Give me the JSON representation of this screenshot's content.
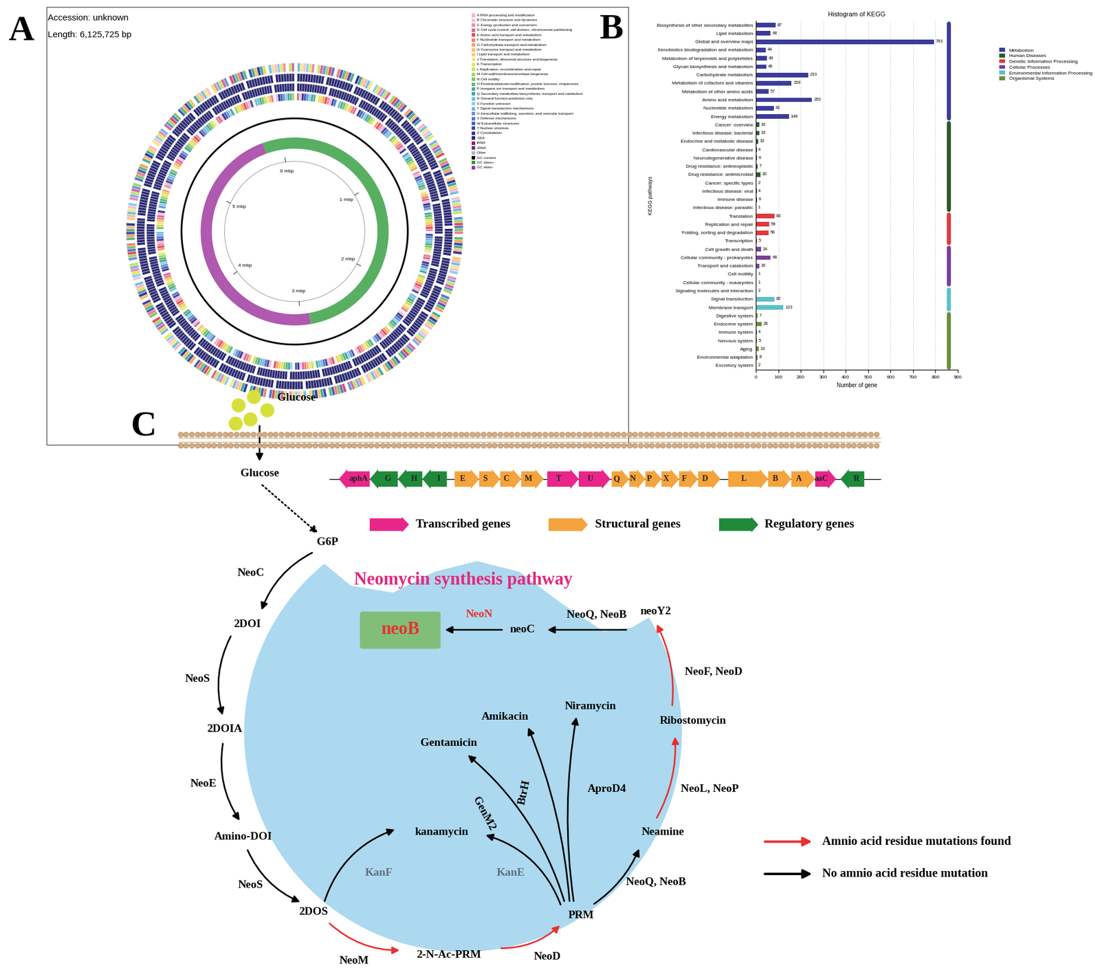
{
  "panel_labels": [
    "A",
    "B",
    "C"
  ],
  "genome_map": {
    "accession": "Accession: unknown",
    "length": "Length: 6,125,725 bp",
    "length_bp": 6125725,
    "scale_labels": [
      {
        "value": 1,
        "label": "1 mbp"
      },
      {
        "value": 2,
        "label": "2 mbp"
      },
      {
        "value": 3,
        "label": "3 mbp"
      },
      {
        "value": 4,
        "label": "4 mbp"
      },
      {
        "value": 5,
        "label": "5 mbp"
      },
      {
        "value": 6,
        "label": "6 mbp"
      }
    ],
    "legend": [
      {
        "label": "A RNA processing and modification",
        "color": "#f7b6c2"
      },
      {
        "label": "B Chromatin structure and dynamics",
        "color": "#f4c2d7"
      },
      {
        "label": "C Energy production and conversion",
        "color": "#e58fb6"
      },
      {
        "label": "D Cell cycle control, cell division, chromosome partitioning",
        "color": "#d76a9e"
      },
      {
        "label": "E Amino acid transport and metabolism",
        "color": "#e84a5f"
      },
      {
        "label": "F Nucleotide transport and metabolism",
        "color": "#f08080"
      },
      {
        "label": "G Carbohydrate transport and metabolism",
        "color": "#f4a460"
      },
      {
        "label": "H Coenzyme transport and metabolism",
        "color": "#f5c16c"
      },
      {
        "label": "I Lipid transport and metabolism",
        "color": "#f2d16b"
      },
      {
        "label": "J Translation, ribosomal structure and biogenesis",
        "color": "#f6e58d"
      },
      {
        "label": "K Transcription",
        "color": "#e5e85c"
      },
      {
        "label": "L Replication, recombination and repair",
        "color": "#c8e06a"
      },
      {
        "label": "M Cell wall/membrane/envelope biogenesis",
        "color": "#a5d46a"
      },
      {
        "label": "N Cell motility",
        "color": "#7cc36b"
      },
      {
        "label": "O Posttranslational modification, protein turnover, chaperones",
        "color": "#5fb878"
      },
      {
        "label": "P Inorganic ion transport and metabolism",
        "color": "#4fae8f"
      },
      {
        "label": "Q Secondary metabolites biosynthesis, transport and catabolism",
        "color": "#45a5a8"
      },
      {
        "label": "R General function prediction only",
        "color": "#6fc3d8"
      },
      {
        "label": "S Function unknown",
        "color": "#8fd0e8"
      },
      {
        "label": "T Signal transduction mechanisms",
        "color": "#7fb3e0"
      },
      {
        "label": "U Intracellular trafficking, secretion, and vesicular transport",
        "color": "#6b95d6"
      },
      {
        "label": "V Defense mechanisms",
        "color": "#5a77c8"
      },
      {
        "label": "W Extracellular structures",
        "color": "#4b5fb8"
      },
      {
        "label": "Y Nuclear structure",
        "color": "#3f4aa8"
      },
      {
        "label": "Z Cytoskeleton",
        "color": "#37389a"
      },
      {
        "label": "CDS",
        "color": "#2b2a72"
      },
      {
        "label": "tRNA",
        "color": "#9b1b4f"
      },
      {
        "label": "rRNA",
        "color": "#6b2c91"
      },
      {
        "label": "Other",
        "color": "#b5b5b5"
      },
      {
        "label": "GC content",
        "color": "#000000"
      },
      {
        "label": "GC skew+",
        "color": "#2e9b3a"
      },
      {
        "label": "GC skew-",
        "color": "#9b2f9b"
      }
    ]
  },
  "chart_data": {
    "type": "bar",
    "title": "Histogram of KEGG",
    "x_label": "Number of gene",
    "y_label": "KEGG pathways",
    "orientation": "horizontal",
    "data_labels": true,
    "grid": true,
    "legend": "upper right",
    "xlim": [
      0,
      900
    ],
    "xticks": [
      0,
      100,
      200,
      300,
      400,
      500,
      600,
      700,
      800,
      900
    ],
    "series": [
      {
        "name": "Metabolism",
        "color": "#3b3c99",
        "categories": [
          "Biosynthesis of other secondary metabolites",
          "Lipid metabolism",
          "Global and overview maps",
          "Xenobiotics biodegradation and metabolism",
          "Metabolism of terpenoids and polyketides",
          "Glycan biosynthesis and metabolism",
          "Carbohydrate metabolism",
          "Metabolism of cofactors and vitamins",
          "Metabolism of other amino acids",
          "Amino acid metabolism",
          "Nucleotide metabolism",
          "Energy metabolism"
        ],
        "values": [
          87,
          66,
          793,
          44,
          49,
          46,
          233,
          159,
          57,
          250,
          81,
          148
        ]
      },
      {
        "name": "Human Diseases",
        "color": "#2d5a2d",
        "categories": [
          "Cancer: overview",
          "Infectious disease: bacterial",
          "Endocrine and metabolic disease",
          "Cardiovascular disease",
          "Neurodegenerative disease",
          "Drug resistance: antineoplastic",
          "Drug resistance: antimicrobial",
          "Cancer: specific types",
          "Infectious disease: viral",
          "Immune disease",
          "Infectious disease: parasitic"
        ],
        "values": [
          16,
          15,
          10,
          4,
          6,
          7,
          20,
          2,
          4,
          6,
          1
        ]
      },
      {
        "name": "Genetic Information Processing",
        "color": "#e0393e",
        "categories": [
          "Translation",
          "Replication and repair",
          "Folding, sorting and degradation",
          "Transcription"
        ],
        "values": [
          83,
          59,
          56,
          5
        ]
      },
      {
        "name": "Cellular Processes",
        "color": "#7b3f98",
        "categories": [
          "Cell growth and death",
          "Cellular community - prokaryotes",
          "Transport and catabolism",
          "Cell motility",
          "Cellular community - eukaryotes"
        ],
        "values": [
          24,
          66,
          16,
          1,
          1
        ]
      },
      {
        "name": "Environmental Information Processing",
        "color": "#5bc0c8",
        "categories": [
          "Signaling molecules and interaction",
          "Signal transduction",
          "Membrane transport"
        ],
        "values": [
          2,
          82,
          123
        ]
      },
      {
        "name": "Organismal Systems",
        "color": "#6b8e3a",
        "categories": [
          "Digestive system",
          "Endocrine system",
          "Immune system",
          "Nervous system",
          "Aging",
          "Environmental adaptation",
          "Excretory system"
        ],
        "values": [
          7,
          26,
          4,
          5,
          13,
          8,
          2
        ]
      }
    ]
  },
  "gene_cluster": {
    "types": [
      {
        "name": "Transcribed genes",
        "color": "#e8268a"
      },
      {
        "name": "Structural genes",
        "color": "#f5a33c"
      },
      {
        "name": "Regulatory genes",
        "color": "#1f8a3a"
      }
    ],
    "genes": [
      {
        "name": "aphA",
        "type": "Transcribed genes",
        "direction": "left"
      },
      {
        "name": "G",
        "type": "Regulatory genes",
        "direction": "left"
      },
      {
        "name": "H",
        "type": "Regulatory genes",
        "direction": "left"
      },
      {
        "name": "I",
        "type": "Regulatory genes",
        "direction": "left"
      },
      {
        "name": "E",
        "type": "Structural genes",
        "direction": "right"
      },
      {
        "name": "S",
        "type": "Structural genes",
        "direction": "right"
      },
      {
        "name": "C",
        "type": "Structural genes",
        "direction": "right"
      },
      {
        "name": "M",
        "type": "Structural genes",
        "direction": "right"
      },
      {
        "name": "T",
        "type": "Transcribed genes",
        "direction": "right"
      },
      {
        "name": "U",
        "type": "Transcribed genes",
        "direction": "right"
      },
      {
        "name": "Q",
        "type": "Structural genes",
        "direction": "right"
      },
      {
        "name": "N",
        "type": "Structural genes",
        "direction": "right"
      },
      {
        "name": "P",
        "type": "Structural genes",
        "direction": "right"
      },
      {
        "name": "X",
        "type": "Structural genes",
        "direction": "right"
      },
      {
        "name": "F",
        "type": "Structural genes",
        "direction": "right"
      },
      {
        "name": "D",
        "type": "Structural genes",
        "direction": "right"
      },
      {
        "name": "L",
        "type": "Structural genes",
        "direction": "right"
      },
      {
        "name": "B",
        "type": "Structural genes",
        "direction": "right"
      },
      {
        "name": "A",
        "type": "Structural genes",
        "direction": "right"
      },
      {
        "name": "aaC",
        "type": "Transcribed genes",
        "direction": "right"
      },
      {
        "name": "R",
        "type": "Regulatory genes",
        "direction": "left"
      }
    ]
  },
  "pathway": {
    "title": "Neomycin synthesis pathway",
    "nodes": [
      {
        "label": "Glucose"
      },
      {
        "label": "Glucose"
      },
      {
        "label": "G6P"
      },
      {
        "label": "2DOI"
      },
      {
        "label": "2DOIA"
      },
      {
        "label": "Amino-DOI"
      },
      {
        "label": "2DOS"
      },
      {
        "label": "2-N-Ac-PRM"
      },
      {
        "label": "PRM"
      },
      {
        "label": "Neamine"
      },
      {
        "label": "Ribostomycin"
      },
      {
        "label": "neoY2"
      },
      {
        "label": "neoC"
      },
      {
        "label": "neoB",
        "highlight": true
      },
      {
        "label": "kanamycin"
      },
      {
        "label": "Gentamicin"
      },
      {
        "label": "Amikacin"
      },
      {
        "label": "Niramycin"
      }
    ],
    "edges": [
      {
        "from": 0,
        "to": 1,
        "mutation": false
      },
      {
        "from": 1,
        "to": 2,
        "mutation": false,
        "line_style": "dotted"
      },
      {
        "from": 2,
        "to": 3,
        "label": "NeoC",
        "mutation": false
      },
      {
        "from": 3,
        "to": 4,
        "label": "NeoS",
        "mutation": false
      },
      {
        "from": 4,
        "to": 5,
        "label": "NeoE",
        "mutation": false
      },
      {
        "from": 5,
        "to": 6,
        "label": "NeoS",
        "mutation": false
      },
      {
        "from": 6,
        "to": 7,
        "label": "NeoM",
        "mutation": true
      },
      {
        "from": 7,
        "to": 8,
        "label": "NeoD",
        "mutation": true
      },
      {
        "from": 8,
        "to": 9,
        "label": "NeoQ, NeoB",
        "mutation": false
      },
      {
        "from": 9,
        "to": 10,
        "label": "NeoL, NeoP",
        "mutation": true
      },
      {
        "from": 10,
        "to": 11,
        "label": "NeoF, NeoD",
        "mutation": true
      },
      {
        "from": 11,
        "to": 12,
        "label": "NeoQ, NeoB",
        "mutation": false
      },
      {
        "from": 12,
        "to": 13,
        "label": "NeoN",
        "mutation": false,
        "label_color": "#e8312f"
      },
      {
        "from": 6,
        "to": 14,
        "label": "KanF",
        "mutation": false,
        "label_color": "#607080"
      },
      {
        "from": 8,
        "to": 14,
        "label": "KanE",
        "mutation": false,
        "label_color": "#607080"
      },
      {
        "from": 8,
        "to": 15,
        "label": "GenM2",
        "mutation": false
      },
      {
        "from": 8,
        "to": 16,
        "label": "BtrH",
        "mutation": false
      },
      {
        "from": 8,
        "to": 17,
        "label": "AproD4",
        "mutation": false
      }
    ],
    "legend": [
      {
        "label": "Amnio acid residue mutations found",
        "color": "#e8312f"
      },
      {
        "label": "No amnio acid residue mutation",
        "color": "#000000"
      }
    ]
  }
}
